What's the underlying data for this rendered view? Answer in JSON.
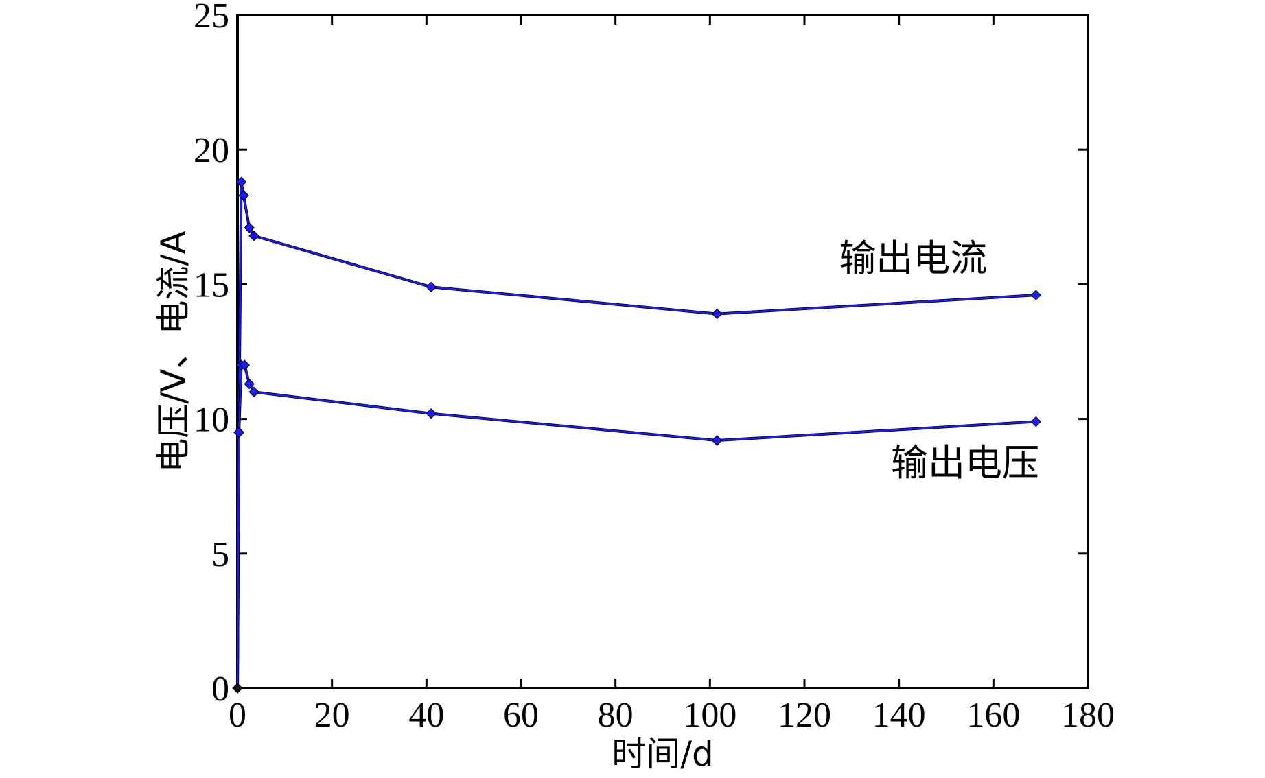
{
  "chart_data": {
    "type": "line",
    "xlabel": "时间/d",
    "ylabel": "电压/V、电流/A",
    "xlim": [
      0,
      180
    ],
    "ylim": [
      0,
      25
    ],
    "xticks": [
      0,
      20,
      40,
      60,
      80,
      100,
      120,
      140,
      160,
      180
    ],
    "yticks": [
      0,
      5,
      10,
      15,
      20,
      25
    ],
    "grid": false,
    "series": [
      {
        "name": "输出电流",
        "line_color": "#1a1aff",
        "x": [
          0,
          0.3,
          0.8,
          1.3,
          2.5,
          3.5,
          41,
          101.5,
          169
        ],
        "y": [
          0,
          9.5,
          18.8,
          18.3,
          17.1,
          16.8,
          14.9,
          13.9,
          14.6
        ]
      },
      {
        "name": "输出电压",
        "line_color": "#1a1aff",
        "x": [
          0,
          0.3,
          0.8,
          1.5,
          2.5,
          3.5,
          41,
          101.5,
          169
        ],
        "y": [
          0,
          9.5,
          12.0,
          12.0,
          11.3,
          11.0,
          10.2,
          9.2,
          9.9
        ]
      }
    ],
    "annotations": [
      {
        "text": "输出电流",
        "x": 143,
        "y": 15.5
      },
      {
        "text": "输出电压",
        "x": 154,
        "y": 7.9
      }
    ]
  }
}
